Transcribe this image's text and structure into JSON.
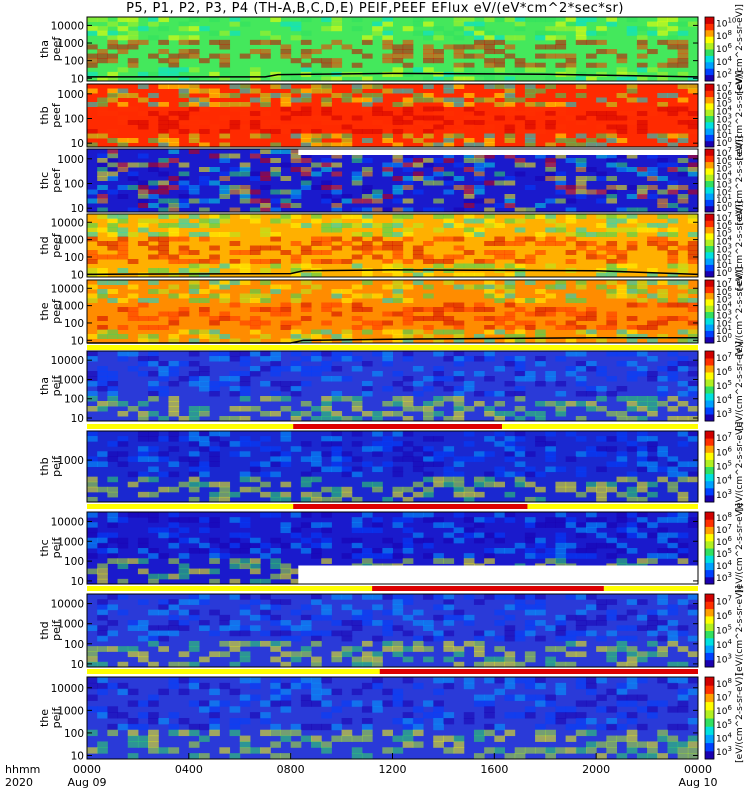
{
  "chart_data": {
    "type": "heatmap",
    "title": "P5, P1, P2, P3, P4 (TH-A,B,C,D,E) PEIF,PEEF EFlux eV/(eV*cm^2*sec*sr)",
    "x_axis": {
      "ticks": [
        "0000",
        "0400",
        "0800",
        "1200",
        "1600",
        "2000",
        "0000"
      ],
      "ticks_hours": [
        0,
        4,
        8,
        12,
        16,
        20,
        24
      ],
      "sub_ticks": [
        "Aug 09",
        "",
        "",
        "",
        "",
        "",
        "Aug 10"
      ],
      "row_label_1": "hhmm",
      "row_label_2": "2020",
      "xlim_hours": [
        0,
        24
      ]
    },
    "panels": [
      {
        "probe": "tha",
        "product": "peef",
        "ylim": [
          7,
          30000
        ],
        "yticks": [
          "10",
          "100",
          "1000",
          "10000"
        ],
        "cb_ticks": [
          "10^2",
          "10^4",
          "10^6",
          "10^8",
          "10^10"
        ],
        "units": "[eV/(cm^2-s-sr-eV)]",
        "bar": null,
        "base_color": "#44e85c",
        "floor_line": [
          [
            0,
            12
          ],
          [
            7,
            12
          ],
          [
            7.5,
            16
          ],
          [
            12,
            19
          ],
          [
            18,
            17
          ],
          [
            24,
            12
          ]
        ]
      },
      {
        "probe": "thb",
        "product": "peef",
        "ylim": [
          7,
          2500
        ],
        "yticks": [
          "10",
          "100",
          "1000"
        ],
        "cb_ticks": [
          "10^0",
          "10^1",
          "10^2",
          "10^3",
          "10^4",
          "10^5",
          "10^6",
          "10^7"
        ],
        "units": "[eV/(cm^2-s-sr-eV)]",
        "bar": null,
        "base_color": "#ff2a00",
        "floor_line": null
      },
      {
        "probe": "thc",
        "product": "peef",
        "ylim": [
          7,
          2500
        ],
        "yticks": [
          "10",
          "100",
          "1000"
        ],
        "cb_ticks": [
          "10^0",
          "10^1",
          "10^2",
          "10^3",
          "10^4",
          "10^5",
          "10^6",
          "10^7"
        ],
        "units": "[eV/(cm^2-s-sr-eV)]",
        "bar": null,
        "base_color": "#1a1acc",
        "floor_line": null
      },
      {
        "probe": "thd",
        "product": "peef",
        "ylim": [
          7,
          30000
        ],
        "yticks": [
          "10",
          "100",
          "1000",
          "10000"
        ],
        "cb_ticks": [
          "10^0",
          "10^1",
          "10^2",
          "10^3",
          "10^4",
          "10^5",
          "10^6",
          "10^7"
        ],
        "units": "[eV/(cm^2-s-sr-eV)]",
        "bar": null,
        "base_color": "#ffb000",
        "floor_line": [
          [
            0,
            10
          ],
          [
            8,
            11
          ],
          [
            8.5,
            16
          ],
          [
            12,
            18
          ],
          [
            20,
            16
          ],
          [
            24,
            10
          ]
        ]
      },
      {
        "probe": "the",
        "product": "peef",
        "ylim": [
          7,
          30000
        ],
        "yticks": [
          "10",
          "100",
          "1000",
          "10000"
        ],
        "cb_ticks": [
          "10^0",
          "10^1",
          "10^2",
          "10^3",
          "10^4",
          "10^5",
          "10^6",
          "10^7"
        ],
        "units": "[eV/(cm^2-s-sr-eV)]",
        "bar": [
          [
            0,
            7.6
          ],
          [
            16.7,
            24
          ]
        ],
        "base_color": "#ff8c00",
        "floor_line": [
          [
            0,
            7
          ],
          [
            8,
            7
          ],
          [
            8.5,
            10
          ],
          [
            13,
            12
          ],
          [
            20,
            14
          ],
          [
            24,
            14
          ]
        ]
      },
      {
        "probe": "tha",
        "product": "peif",
        "ylim": [
          7,
          30000
        ],
        "yticks": [
          "10",
          "100",
          "1000",
          "10000"
        ],
        "cb_ticks": [
          "10^3",
          "10^4",
          "10^5",
          "10^6",
          "10^7"
        ],
        "units": "[eV/(cm^2-s-sr-eV)]",
        "bar": null,
        "base_color": "#2a3ad8",
        "floor_line": null
      },
      {
        "probe": "thb",
        "product": "peif",
        "ylim": [
          50,
          8000
        ],
        "yticks": [
          "1000"
        ],
        "cb_ticks": [
          "10^3",
          "10^4",
          "10^5",
          "10^6",
          "10^7"
        ],
        "units": "[eV/(cm^2-s-sr-eV)]",
        "bar": [
          [
            8.1,
            16.3
          ]
        ],
        "base_color": "#1a28d0",
        "floor_line": null
      },
      {
        "probe": "thc",
        "product": "peif",
        "ylim": [
          7,
          30000
        ],
        "yticks": [
          "10",
          "100",
          "1000",
          "10000"
        ],
        "cb_ticks": [
          "10^3",
          "10^4",
          "10^5",
          "10^6",
          "10^7",
          "10^8"
        ],
        "units": "[eV/(cm^2-s-sr-eV)]",
        "bar": [
          [
            8.1,
            17.3
          ]
        ],
        "base_color": "#1a1acc",
        "floor_line": null
      },
      {
        "probe": "thd",
        "product": "peif",
        "ylim": [
          7,
          30000
        ],
        "yticks": [
          "10",
          "100",
          "1000",
          "10000"
        ],
        "cb_ticks": [
          "10^3",
          "10^4",
          "10^5",
          "10^6",
          "10^7"
        ],
        "units": "[eV/(cm^2-s-sr-eV)]",
        "bar": [
          [
            11.2,
            20.3
          ]
        ],
        "base_color": "#2a3ad8",
        "floor_line": null
      },
      {
        "probe": "the",
        "product": "peif",
        "ylim": [
          7,
          30000
        ],
        "yticks": [
          "10",
          "100",
          "1000",
          "10000"
        ],
        "cb_ticks": [
          "10^3",
          "10^4",
          "10^5",
          "10^6",
          "10^7",
          "10^8"
        ],
        "units": "[eV/(cm^2-s-sr-eV)]",
        "bar": [
          [
            11.5,
            24
          ]
        ],
        "base_color": "#2a3ad8",
        "floor_line": null
      }
    ],
    "colormap": [
      "#1a00b0",
      "#0040ff",
      "#00a0ff",
      "#00e0e0",
      "#30e060",
      "#b0f020",
      "#ffff00",
      "#ffa000",
      "#ff3000",
      "#d00000"
    ],
    "bar_colors": {
      "background": "#ffff00",
      "segment": "#dd0000"
    }
  }
}
